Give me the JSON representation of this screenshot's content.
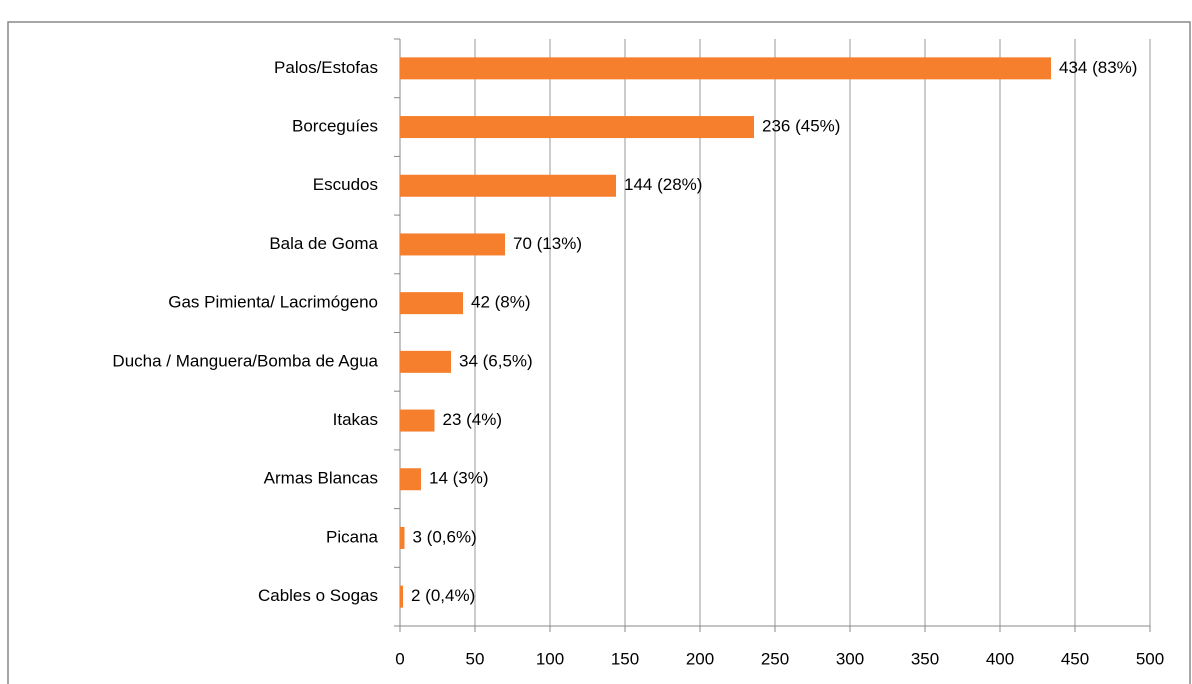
{
  "chart_data": {
    "type": "barh",
    "categories": [
      "Palos/Estofas",
      "Borceguíes",
      "Escudos",
      "Bala de Goma",
      "Gas Pimienta/ Lacrimógeno",
      "Ducha / Manguera/Bomba de Agua",
      "Itakas",
      "Armas Blancas",
      "Picana",
      "Cables o Sogas"
    ],
    "values": [
      434,
      236,
      144,
      70,
      42,
      34,
      23,
      14,
      3,
      2
    ],
    "value_labels": [
      "434 (83%)",
      "236 (45%)",
      "144 (28%)",
      "70 (13%)",
      "42 (8%)",
      "34 (6,5%)",
      "23 (4%)",
      "14 (3%)",
      "3 (0,6%)",
      "2 (0,4%)"
    ],
    "color": "#f57f2c",
    "xlim": [
      0,
      500
    ],
    "xticks": [
      0,
      50,
      100,
      150,
      200,
      250,
      300,
      350,
      400,
      450,
      500
    ],
    "grid": true
  }
}
